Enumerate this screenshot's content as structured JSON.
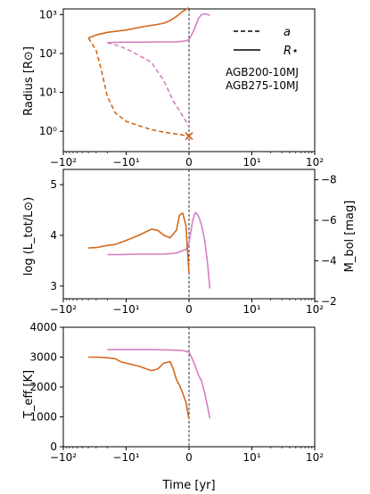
{
  "colors": {
    "agb200": "#d67ec2",
    "agb275": "#d2691e",
    "axis": "#000000",
    "background": "#ffffff"
  },
  "x_axis": {
    "scale": "symlog",
    "linthresh": 10,
    "range": [
      -100,
      100
    ],
    "ticks": [
      -100,
      -10,
      0,
      10,
      100
    ],
    "tick_labels": [
      "−10²",
      "−10¹",
      "0",
      "10¹",
      "10²"
    ],
    "xlabel": "Time [yr]",
    "vline_at": 0
  },
  "chart_data": [
    {
      "type": "line",
      "panel": "top",
      "ylabel": "Radius [R⊙]",
      "yscale": "log",
      "ylim": [
        0.3,
        1400
      ],
      "yticks": [
        1,
        10,
        100,
        1000
      ],
      "ytick_labels": [
        "10⁰",
        "10¹",
        "10²",
        "10³"
      ],
      "legend": {
        "placement": "top-right",
        "entries": [
          {
            "style": "dashed",
            "label": "a"
          },
          {
            "style": "solid",
            "label": "R⋆"
          }
        ]
      },
      "annotations": [
        {
          "text": "AGB200-10MJ",
          "color": "#d67ec2"
        },
        {
          "text": "AGB275-10MJ",
          "color": "#d2691e"
        }
      ],
      "series": [
        {
          "name": "AGB200-10MJ",
          "quantity": "R⋆",
          "style": "solid",
          "color": "#d67ec2",
          "x": [
            -20,
            -12,
            -8,
            -5,
            -2,
            -0.5,
            0,
            0.8,
            1.5,
            2,
            2.5,
            3,
            3.3
          ],
          "y": [
            190,
            195,
            195,
            198,
            200,
            210,
            230,
            400,
            800,
            1000,
            1050,
            1000,
            950
          ]
        },
        {
          "name": "AGB200-10MJ",
          "quantity": "a",
          "style": "dashed",
          "color": "#d67ec2",
          "x": [
            -20,
            -12,
            -9,
            -6,
            -4,
            -2.5,
            -1,
            0
          ],
          "y": [
            190,
            150,
            110,
            60,
            20,
            6,
            2.5,
            1.3
          ]
        },
        {
          "name": "AGB275-10MJ",
          "quantity": "R⋆",
          "style": "solid",
          "color": "#d2691e",
          "x": [
            -40,
            -30,
            -20,
            -15,
            -10,
            -7,
            -5,
            -4,
            -3,
            -2,
            -1,
            -0.5,
            0
          ],
          "y": [
            250,
            300,
            350,
            370,
            400,
            500,
            560,
            600,
            700,
            900,
            1200,
            1350,
            1500
          ]
        },
        {
          "name": "AGB275-10MJ",
          "quantity": "a",
          "style": "dashed",
          "color": "#d2691e",
          "x": [
            -40,
            -30,
            -25,
            -20,
            -15,
            -10,
            -8,
            -6,
            -4,
            -2,
            -1,
            0
          ],
          "y": [
            250,
            120,
            40,
            8,
            3,
            1.8,
            1.4,
            1.1,
            0.95,
            0.85,
            0.8,
            0.75
          ]
        }
      ],
      "markers": [
        {
          "x": 0,
          "y": 0.75,
          "symbol": "x",
          "color": "#d2691e"
        }
      ]
    },
    {
      "type": "line",
      "panel": "middle",
      "ylabel": "log (L_tot/L⊙)",
      "ylim": [
        2.75,
        5.3
      ],
      "yticks": [
        3,
        4,
        5
      ],
      "ytick_labels": [
        "3",
        "4",
        "5"
      ],
      "secondary_y": {
        "ylabel": "M_bol [mag]",
        "ticks": [
          -8,
          -6,
          -4,
          -2
        ],
        "tick_labels": [
          "−8",
          "−6",
          "−4",
          "−2"
        ]
      },
      "series": [
        {
          "name": "AGB200-10MJ",
          "color": "#d67ec2",
          "x": [
            -20,
            -12,
            -8,
            -4,
            -2,
            -0.5,
            0,
            0.6,
            1,
            1.3,
            1.6,
            2,
            2.5,
            3,
            3.3
          ],
          "y": [
            3.62,
            3.62,
            3.63,
            3.63,
            3.65,
            3.72,
            3.85,
            4.3,
            4.45,
            4.42,
            4.35,
            4.2,
            3.9,
            3.4,
            2.95
          ]
        },
        {
          "name": "AGB275-10MJ",
          "color": "#d2691e",
          "x": [
            -40,
            -30,
            -20,
            -15,
            -10,
            -8,
            -6,
            -5,
            -4,
            -3,
            -2,
            -1.5,
            -1,
            -0.5,
            0
          ],
          "y": [
            3.75,
            3.76,
            3.8,
            3.82,
            3.9,
            4.0,
            4.12,
            4.1,
            4.0,
            3.95,
            4.1,
            4.4,
            4.44,
            4.2,
            3.25
          ]
        }
      ]
    },
    {
      "type": "line",
      "panel": "bottom",
      "ylabel": "T_eff [K]",
      "ylim": [
        0,
        4000
      ],
      "yticks": [
        0,
        1000,
        2000,
        3000,
        4000
      ],
      "ytick_labels": [
        "0",
        "1000",
        "2000",
        "3000",
        "4000"
      ],
      "series": [
        {
          "name": "AGB200-10MJ",
          "color": "#d67ec2",
          "x": [
            -20,
            -12,
            -6,
            -3,
            -1,
            0,
            0.5,
            1,
            1.5,
            2,
            2.5,
            3,
            3.3
          ],
          "y": [
            3250,
            3250,
            3250,
            3240,
            3220,
            3170,
            2950,
            2700,
            2400,
            2200,
            1800,
            1300,
            950
          ]
        },
        {
          "name": "AGB275-10MJ",
          "color": "#d2691e",
          "x": [
            -40,
            -30,
            -20,
            -15,
            -12,
            -8,
            -6,
            -5,
            -4,
            -3,
            -2.5,
            -2,
            -1.5,
            -1,
            -0.5,
            0
          ],
          "y": [
            3000,
            3000,
            2980,
            2950,
            2840,
            2700,
            2550,
            2600,
            2800,
            2850,
            2600,
            2250,
            2050,
            1800,
            1500,
            920
          ]
        }
      ]
    }
  ]
}
